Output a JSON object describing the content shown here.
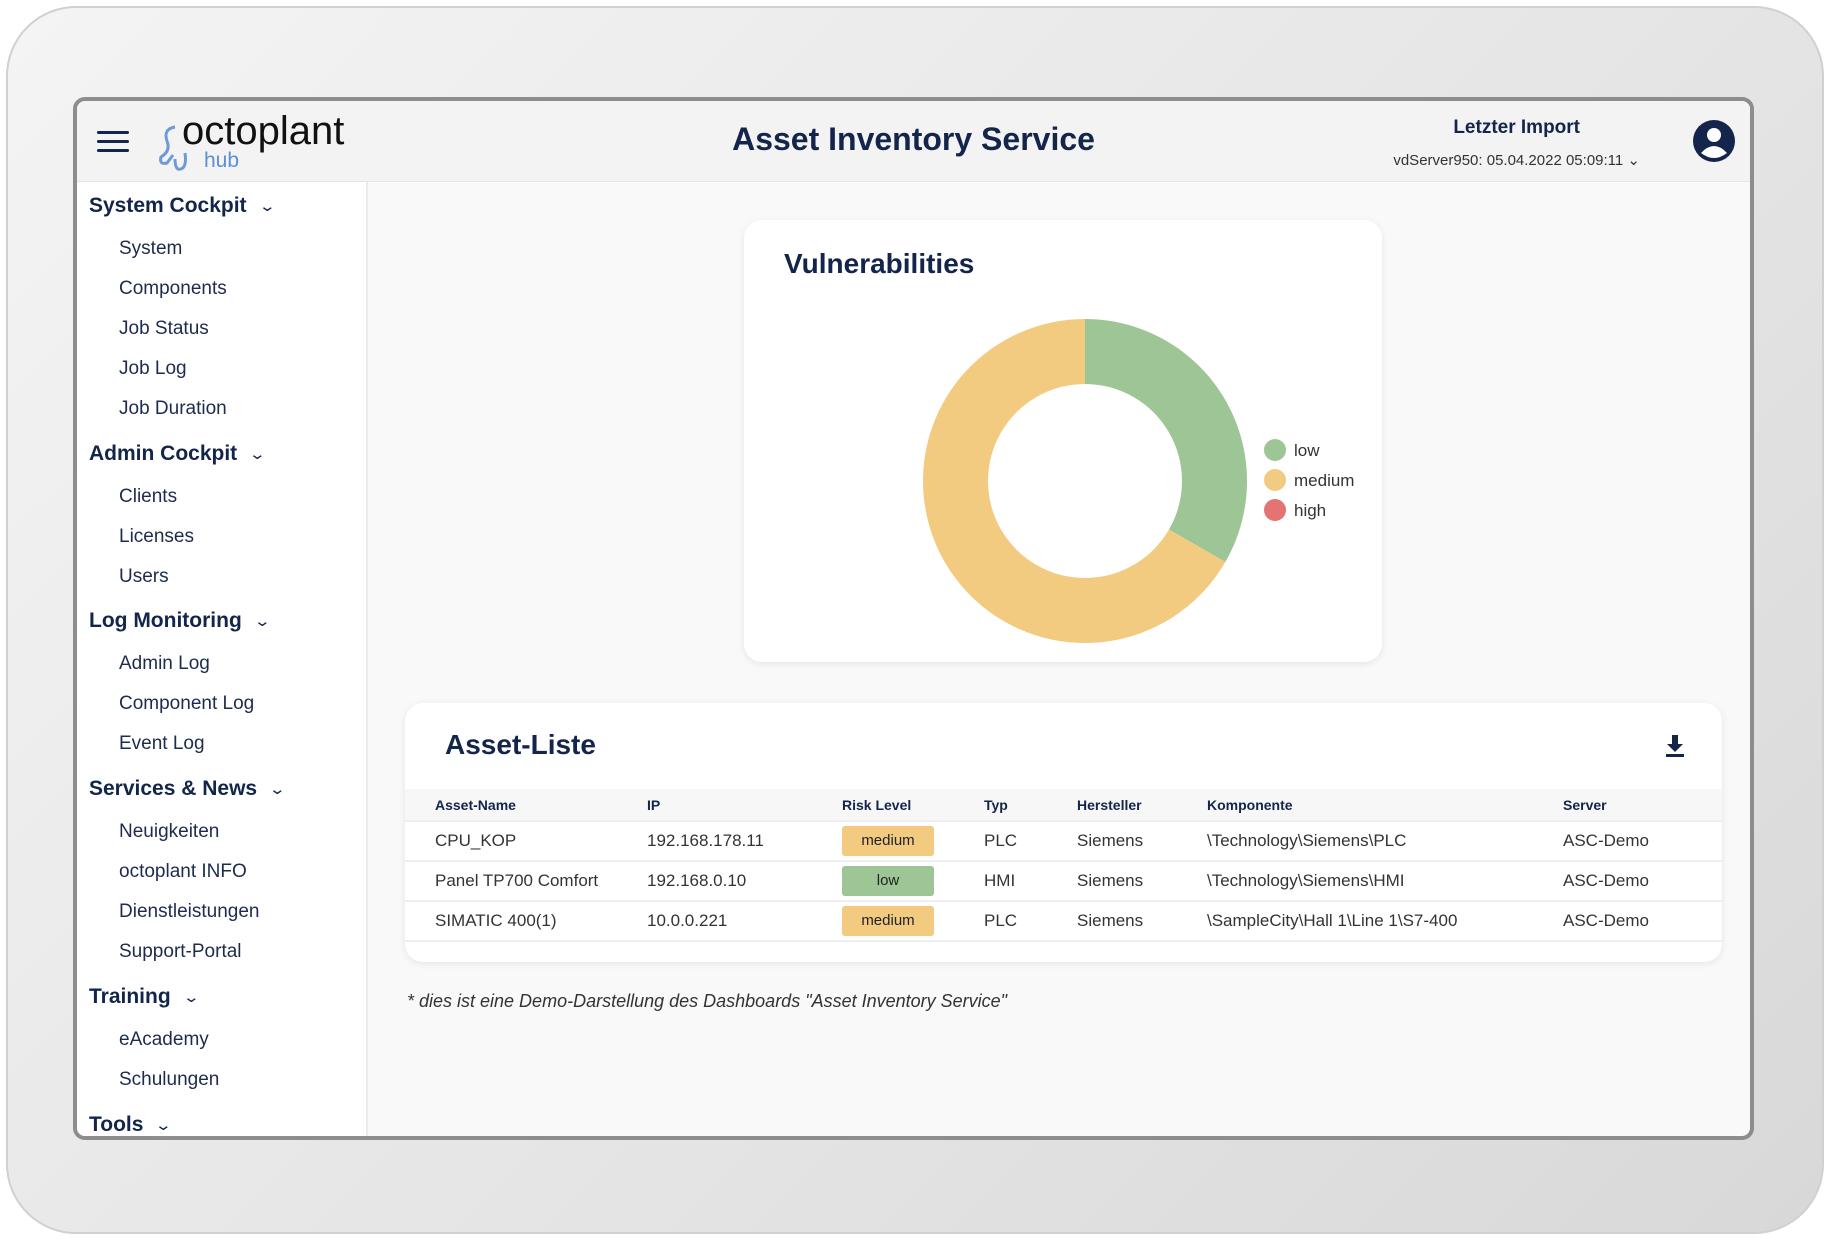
{
  "app": {
    "logo_main": "octoplant",
    "logo_sub": "hub",
    "title": "Asset Inventory Service"
  },
  "import": {
    "label": "Letzter Import",
    "value": "vdServer950: 05.04.2022 05:09:11"
  },
  "sidebar": [
    {
      "label": "System Cockpit",
      "items": [
        "System",
        "Components",
        "Job Status",
        "Job Log",
        "Job Duration"
      ]
    },
    {
      "label": "Admin Cockpit",
      "items": [
        "Clients",
        "Licenses",
        "Users"
      ]
    },
    {
      "label": "Log Monitoring",
      "items": [
        "Admin Log",
        "Component Log",
        "Event Log"
      ]
    },
    {
      "label": "Services & News",
      "items": [
        "Neuigkeiten",
        "octoplant INFO",
        "Dienstleistungen",
        "Support-Portal"
      ]
    },
    {
      "label": "Training",
      "items": [
        "eAcademy",
        "Schulungen"
      ]
    },
    {
      "label": "Tools",
      "items": []
    }
  ],
  "chart_data": {
    "type": "pie",
    "title": "Vulnerabilities",
    "donut": true,
    "legend": "right",
    "categories": [
      "low",
      "medium",
      "high"
    ],
    "values": [
      1,
      2,
      0
    ],
    "colors": [
      "#9dc595",
      "#f2cb80",
      "#e57373"
    ]
  },
  "assets": {
    "title": "Asset-Liste",
    "columns": [
      "Asset-Name",
      "IP",
      "Risk Level",
      "Typ",
      "Hersteller",
      "Komponente",
      "Server"
    ],
    "rows": [
      [
        "CPU_KOP",
        "192.168.178.11",
        "medium",
        "PLC",
        "Siemens",
        "\\Technology\\Siemens\\PLC",
        "ASC-Demo"
      ],
      [
        "Panel TP700 Comfort",
        "192.168.0.10",
        "low",
        "HMI",
        "Siemens",
        "\\Technology\\Siemens\\HMI",
        "ASC-Demo"
      ],
      [
        "SIMATIC 400(1)",
        "10.0.0.221",
        "medium",
        "PLC",
        "Siemens",
        "\\SampleCity\\Hall 1\\Line 1\\S7-400",
        "ASC-Demo"
      ]
    ]
  },
  "risk_colors": {
    "low": "#9dc595",
    "medium": "#f2cb80",
    "high": "#e57373"
  },
  "footnote": "* dies ist eine Demo-Darstellung des Dashboards \"Asset Inventory Service\""
}
